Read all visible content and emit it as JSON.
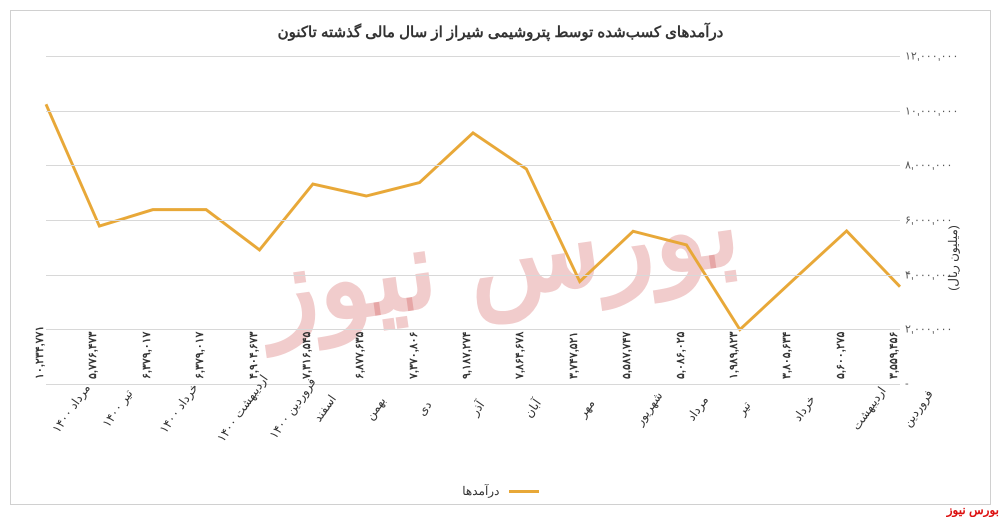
{
  "chart": {
    "type": "line",
    "title": "درآمدهای کسب‌شده توسط پتروشیمی شیراز از سال مالی گذشته تاکنون",
    "y_axis_title": "(میلیون ریال)",
    "ylim": [
      0,
      12000000
    ],
    "ytick_step": 2000000,
    "y_ticks": [
      0,
      2000000,
      4000000,
      6000000,
      8000000,
      10000000,
      12000000
    ],
    "y_tick_labels": [
      "-",
      "۲,۰۰۰,۰۰۰",
      "۴,۰۰۰,۰۰۰",
      "۶,۰۰۰,۰۰۰",
      "۸,۰۰۰,۰۰۰",
      "۱۰,۰۰۰,۰۰۰",
      "۱۲,۰۰۰,۰۰۰"
    ],
    "categories": [
      "فروردین",
      "اردیبهشت",
      "خرداد",
      "تیر",
      "مرداد",
      "شهریور",
      "مهر",
      "آبان",
      "آذر",
      "دی",
      "بهمن",
      "اسفند",
      "فروردین ۱۴۰۰",
      "اردیبهشت ۱۴۰۰",
      "خرداد ۱۴۰۰",
      "تیر ۱۴۰۰",
      "مرداد ۱۴۰۰"
    ],
    "values": [
      3559456,
      5600275,
      3805634,
      1989823,
      5086025,
      5587747,
      3747521,
      7864678,
      9187274,
      7370806,
      6877635,
      7316545,
      4904673,
      6379017,
      6379017,
      5776473,
      10234771
    ],
    "value_labels": [
      "۳,۵۵۹,۴۵۶",
      "۵,۶۰۰,۲۷۵",
      "۳,۸۰۵,۶۳۴",
      "۱,۹۸۹,۸۲۳",
      "۵,۰۸۶,۰۲۵",
      "۵,۵۸۷,۷۴۷",
      "۳,۷۴۷,۵۲۱",
      "۷,۸۶۴,۶۷۸",
      "۹,۱۸۷,۲۷۴",
      "۷,۳۷۰,۸۰۶",
      "۶,۸۷۷,۶۳۵",
      "۷,۳۱۶,۵۴۵",
      "۴,۹۰۴,۶۷۳",
      "۶,۳۷۹,۰۱۷",
      "۶,۳۷۹,۰۱۷",
      "۵,۷۷۶,۴۷۳",
      "۱۰,۲۳۴,۷۷۱"
    ],
    "line_color": "#e8a838",
    "line_width": 3,
    "grid_color": "#d8d8d8",
    "background_color": "#ffffff",
    "title_fontsize": 15,
    "label_fontsize": 12,
    "value_fontsize": 11,
    "legend_label": "درآمدها",
    "source_label": "بورس نیوز",
    "watermark_text": "بورس نیوز"
  }
}
